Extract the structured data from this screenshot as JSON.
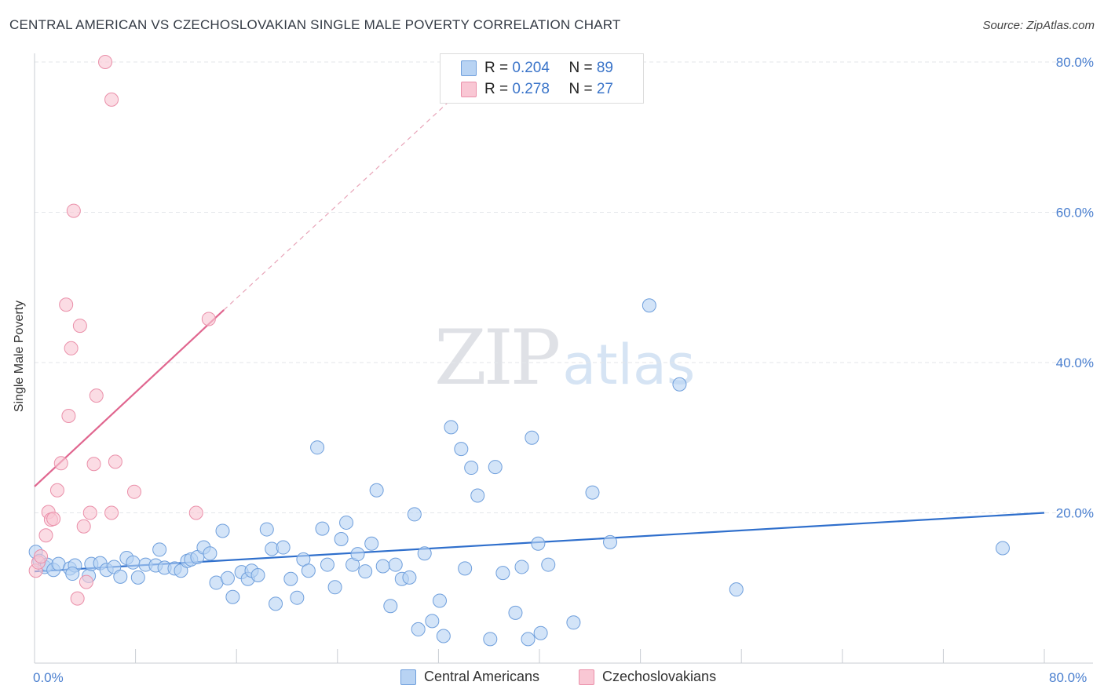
{
  "title": "CENTRAL AMERICAN VS CZECHOSLOVAKIAN SINGLE MALE POVERTY CORRELATION CHART",
  "source": "Source: ZipAtlas.com",
  "watermark": {
    "zip": "ZIP",
    "atlas": "atlas"
  },
  "legend": {
    "blue": {
      "r_label": "R = ",
      "r_value": "0.204",
      "n_label": "N = ",
      "n_value": "89"
    },
    "pink": {
      "r_label": "R = ",
      "r_value": "0.278",
      "n_label": "N = ",
      "n_value": "27"
    }
  },
  "axes": {
    "x_min_label": "0.0%",
    "x_max_label": "80.0%",
    "y_label": "Single Male Poverty"
  },
  "colors": {
    "blue_fill": "#b8d3f3",
    "blue_stroke": "#6f9fdc",
    "blue_line": "#2f6fcc",
    "pink_fill": "#f9c7d4",
    "pink_stroke": "#ea8fa9",
    "pink_line": "#e0668f",
    "tick_label": "#4a7fcf",
    "grid": "#e3e6ea"
  },
  "chart_data": {
    "type": "scatter",
    "title": "CENTRAL AMERICAN VS CZECHOSLOVAKIAN SINGLE MALE POVERTY CORRELATION CHART",
    "xlabel": "",
    "ylabel": "Single Male Poverty",
    "xlim": [
      0,
      80
    ],
    "ylim": [
      0,
      80
    ],
    "y_ticks": [
      "20.0%",
      "40.0%",
      "60.0%",
      "80.0%"
    ],
    "y_tick_values": [
      20,
      40,
      60,
      80
    ],
    "grid": true,
    "legend_position": "top-center",
    "series": [
      {
        "name": "Central Americans",
        "color": "#6f9fdc",
        "trend": {
          "x": [
            0,
            80
          ],
          "y": [
            12.2,
            20.0
          ]
        },
        "points": [
          [
            0.1,
            14.8
          ],
          [
            0.4,
            13.6
          ],
          [
            0.8,
            12.8
          ],
          [
            1.0,
            13.1
          ],
          [
            1.5,
            12.4
          ],
          [
            1.9,
            13.2
          ],
          [
            2.8,
            12.6
          ],
          [
            3.2,
            13.0
          ],
          [
            4.3,
            11.6
          ],
          [
            4.5,
            13.2
          ],
          [
            5.2,
            13.3
          ],
          [
            5.7,
            12.4
          ],
          [
            6.3,
            12.8
          ],
          [
            6.8,
            11.5
          ],
          [
            7.3,
            14.0
          ],
          [
            7.8,
            13.4
          ],
          [
            8.2,
            11.4
          ],
          [
            8.8,
            13.1
          ],
          [
            9.6,
            13.0
          ],
          [
            9.9,
            15.1
          ],
          [
            10.3,
            12.7
          ],
          [
            11.1,
            12.6
          ],
          [
            11.6,
            12.3
          ],
          [
            12.1,
            13.6
          ],
          [
            12.4,
            13.8
          ],
          [
            12.9,
            14.1
          ],
          [
            13.4,
            15.4
          ],
          [
            13.9,
            14.6
          ],
          [
            14.4,
            10.7
          ],
          [
            14.9,
            17.6
          ],
          [
            15.3,
            11.3
          ],
          [
            15.7,
            8.8
          ],
          [
            16.4,
            12.1
          ],
          [
            16.9,
            11.2
          ],
          [
            17.2,
            12.3
          ],
          [
            17.7,
            11.7
          ],
          [
            18.4,
            17.8
          ],
          [
            18.8,
            15.2
          ],
          [
            19.1,
            7.9
          ],
          [
            19.7,
            15.4
          ],
          [
            20.3,
            11.2
          ],
          [
            20.8,
            8.7
          ],
          [
            21.3,
            13.8
          ],
          [
            21.7,
            12.3
          ],
          [
            22.4,
            28.7
          ],
          [
            22.8,
            17.9
          ],
          [
            23.2,
            13.1
          ],
          [
            23.8,
            10.1
          ],
          [
            24.3,
            16.5
          ],
          [
            24.7,
            18.7
          ],
          [
            25.2,
            13.1
          ],
          [
            25.6,
            14.5
          ],
          [
            26.2,
            12.2
          ],
          [
            26.7,
            15.9
          ],
          [
            27.1,
            23.0
          ],
          [
            27.6,
            12.9
          ],
          [
            28.2,
            7.6
          ],
          [
            28.6,
            13.1
          ],
          [
            29.1,
            11.2
          ],
          [
            29.7,
            11.4
          ],
          [
            30.1,
            19.8
          ],
          [
            30.4,
            4.5
          ],
          [
            30.9,
            14.6
          ],
          [
            31.5,
            5.6
          ],
          [
            32.1,
            8.3
          ],
          [
            32.4,
            3.6
          ],
          [
            33.0,
            31.4
          ],
          [
            33.8,
            28.5
          ],
          [
            34.1,
            12.6
          ],
          [
            34.6,
            26.0
          ],
          [
            35.1,
            22.3
          ],
          [
            36.1,
            3.2
          ],
          [
            36.5,
            26.1
          ],
          [
            37.1,
            12.0
          ],
          [
            38.1,
            6.7
          ],
          [
            38.6,
            12.8
          ],
          [
            39.1,
            3.2
          ],
          [
            39.4,
            30.0
          ],
          [
            39.9,
            15.9
          ],
          [
            40.1,
            4.0
          ],
          [
            40.7,
            13.1
          ],
          [
            42.7,
            5.4
          ],
          [
            44.2,
            22.7
          ],
          [
            45.6,
            16.1
          ],
          [
            48.7,
            47.6
          ],
          [
            51.1,
            37.1
          ],
          [
            55.6,
            9.8
          ],
          [
            76.7,
            15.3
          ],
          [
            3.0,
            11.9
          ]
        ]
      },
      {
        "name": "Czechoslovakians",
        "color": "#ea8fa9",
        "trend": {
          "x": [
            0,
            15
          ],
          "y": [
            23.5,
            47.0
          ]
        },
        "trend_extension": {
          "x": [
            15,
            33
          ],
          "y": [
            47.0,
            75.0
          ]
        },
        "points": [
          [
            0.1,
            12.3
          ],
          [
            0.3,
            13.4
          ],
          [
            0.5,
            14.2
          ],
          [
            0.9,
            17.0
          ],
          [
            1.1,
            20.1
          ],
          [
            1.3,
            19.1
          ],
          [
            1.5,
            19.2
          ],
          [
            1.8,
            23.0
          ],
          [
            2.1,
            26.6
          ],
          [
            2.5,
            47.7
          ],
          [
            2.7,
            32.9
          ],
          [
            2.9,
            41.9
          ],
          [
            3.1,
            60.2
          ],
          [
            3.4,
            8.6
          ],
          [
            3.6,
            44.9
          ],
          [
            3.9,
            18.2
          ],
          [
            4.1,
            10.8
          ],
          [
            4.4,
            20.0
          ],
          [
            4.7,
            26.5
          ],
          [
            4.9,
            35.6
          ],
          [
            5.6,
            80.0
          ],
          [
            6.1,
            75.0
          ],
          [
            6.4,
            26.8
          ],
          [
            6.1,
            20.0
          ],
          [
            7.9,
            22.8
          ],
          [
            12.8,
            20.0
          ],
          [
            13.8,
            45.8
          ]
        ]
      }
    ]
  },
  "bottom_legend": [
    {
      "label": "Central Americans"
    },
    {
      "label": "Czechoslovakians"
    }
  ]
}
